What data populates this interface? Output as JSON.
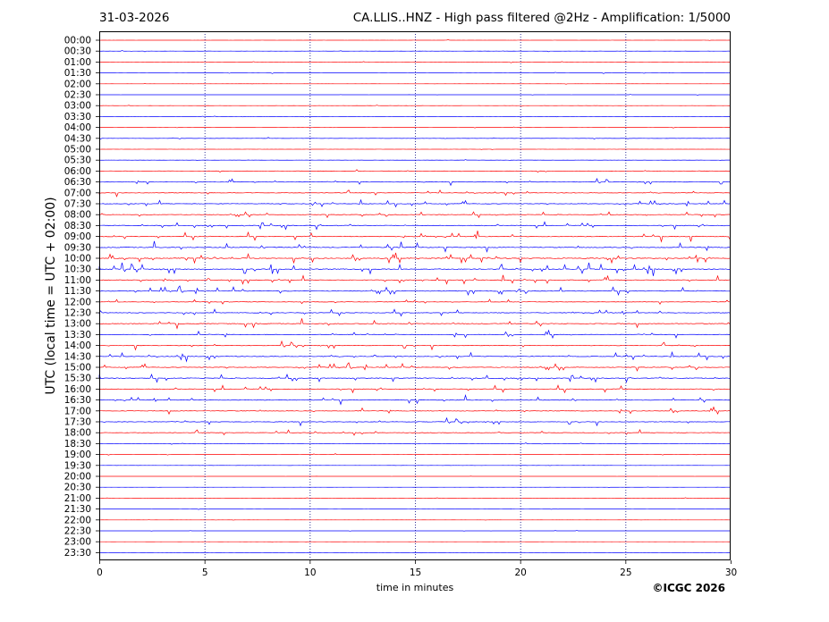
{
  "header": {
    "date": "31-03-2026",
    "title": "CA.LLIS..HNZ - High pass filtered @2Hz - Amplification: 1/5000"
  },
  "footer": {
    "copyright": "©ICGC 2026"
  },
  "chart_data": {
    "type": "line",
    "title": "CA.LLIS..HNZ - High pass filtered @2Hz - Amplification: 1/5000",
    "xlabel": "time in minutes",
    "ylabel": "UTC (local time = UTC + 02:00)",
    "xlim": [
      0,
      30
    ],
    "x_ticks": [
      0,
      5,
      10,
      15,
      20,
      25,
      30
    ],
    "vertical_gridlines_at": [
      5,
      10,
      15,
      20,
      25
    ],
    "row_labels": [
      "00:00",
      "00:30",
      "01:00",
      "01:30",
      "02:00",
      "02:30",
      "03:00",
      "03:30",
      "04:00",
      "04:30",
      "05:00",
      "05:30",
      "06:00",
      "06:30",
      "07:00",
      "07:30",
      "08:00",
      "08:30",
      "09:00",
      "09:30",
      "10:00",
      "10:30",
      "11:00",
      "11:30",
      "12:00",
      "12:30",
      "13:00",
      "13:30",
      "14:00",
      "14:30",
      "15:00",
      "15:30",
      "16:00",
      "16:30",
      "17:00",
      "17:30",
      "18:00",
      "18:30",
      "19:00",
      "19:30",
      "20:00",
      "20:30",
      "21:00",
      "21:30",
      "22:00",
      "22:30",
      "23:00",
      "23:30"
    ],
    "series_colors": [
      "#ff0000",
      "#0000ff"
    ],
    "activity_levels": [
      0.08,
      0.08,
      0.1,
      0.08,
      0.06,
      0.06,
      0.07,
      0.07,
      0.1,
      0.14,
      0.12,
      0.14,
      0.25,
      0.35,
      0.4,
      0.45,
      0.4,
      0.55,
      0.6,
      0.65,
      0.65,
      0.7,
      0.6,
      0.55,
      0.35,
      0.5,
      0.55,
      0.5,
      0.45,
      0.5,
      0.5,
      0.55,
      0.55,
      0.5,
      0.45,
      0.4,
      0.4,
      0.12,
      0.1,
      0.07,
      0.06,
      0.06,
      0.06,
      0.05,
      0.05,
      0.05,
      0.05,
      0.06
    ]
  }
}
